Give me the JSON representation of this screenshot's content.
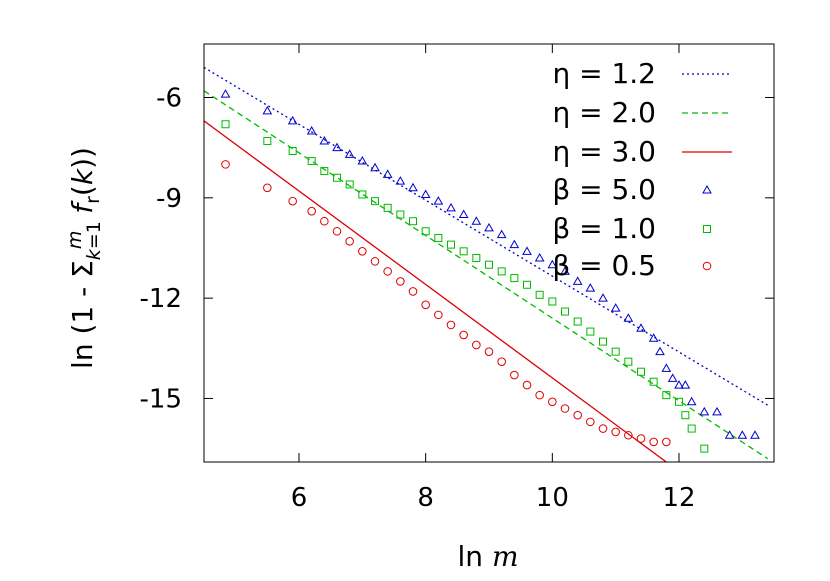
{
  "chart_data": {
    "type": "scatter",
    "xlabel": "ln m",
    "ylabel": "ln (1 - Σ_{k=1}^{m} f_r(k))",
    "xlim": [
      4.5,
      13.5
    ],
    "ylim": [
      -16.9,
      -4.4
    ],
    "xticks": [
      6,
      8,
      10,
      12
    ],
    "yticks": [
      -6,
      -9,
      -12,
      -15
    ],
    "tick_labels": {
      "x": [
        "6",
        "8",
        "10",
        "12"
      ],
      "y": [
        "-6",
        "-9",
        "-12",
        "-15"
      ]
    },
    "grid": false,
    "legend_position": "top-right",
    "series": [
      {
        "name": "η = 1.2",
        "kind": "line",
        "style": "dotted",
        "color": "#0000cc",
        "x": [
          4.5,
          13.4
        ],
        "y": [
          -5.1,
          -15.2
        ]
      },
      {
        "name": "η = 2.0",
        "kind": "line",
        "style": "dashed",
        "color": "#00bb00",
        "x": [
          4.5,
          13.4
        ],
        "y": [
          -5.8,
          -16.8
        ]
      },
      {
        "name": "η = 3.0",
        "kind": "line",
        "style": "solid",
        "color": "#dd0000",
        "x": [
          4.5,
          11.8
        ],
        "y": [
          -6.7,
          -16.9
        ]
      },
      {
        "name": "β = 5.0",
        "kind": "points",
        "marker": "triangle",
        "color": "#0000cc",
        "x": [
          4.84,
          5.5,
          5.9,
          6.2,
          6.4,
          6.6,
          6.8,
          7.0,
          7.2,
          7.4,
          7.6,
          7.8,
          8.0,
          8.2,
          8.4,
          8.6,
          8.8,
          9.0,
          9.2,
          9.4,
          9.6,
          9.8,
          10.0,
          10.2,
          10.4,
          10.6,
          10.8,
          11.0,
          11.2,
          11.4,
          11.6,
          11.7,
          11.8,
          11.9,
          12.0,
          12.1,
          12.2,
          12.4,
          12.6,
          12.8,
          13.0,
          13.2
        ],
        "y": [
          -5.9,
          -6.4,
          -6.7,
          -7.0,
          -7.3,
          -7.5,
          -7.7,
          -7.9,
          -8.1,
          -8.3,
          -8.5,
          -8.7,
          -8.9,
          -9.1,
          -9.3,
          -9.5,
          -9.7,
          -9.9,
          -10.1,
          -10.4,
          -10.6,
          -10.8,
          -11.0,
          -11.2,
          -11.5,
          -11.7,
          -12.0,
          -12.3,
          -12.6,
          -12.9,
          -13.2,
          -13.6,
          -14.1,
          -14.4,
          -14.6,
          -14.6,
          -15.1,
          -15.4,
          -15.4,
          -16.1,
          -16.1,
          -16.1
        ]
      },
      {
        "name": "β = 1.0",
        "kind": "points",
        "marker": "square",
        "color": "#00bb00",
        "x": [
          4.84,
          5.5,
          5.9,
          6.2,
          6.4,
          6.6,
          6.8,
          7.0,
          7.2,
          7.4,
          7.6,
          7.8,
          8.0,
          8.2,
          8.4,
          8.6,
          8.8,
          9.0,
          9.2,
          9.4,
          9.6,
          9.8,
          10.0,
          10.2,
          10.4,
          10.6,
          10.8,
          11.0,
          11.2,
          11.4,
          11.6,
          11.8,
          12.0,
          12.1,
          12.2,
          12.4
        ],
        "y": [
          -6.8,
          -7.3,
          -7.6,
          -7.9,
          -8.2,
          -8.4,
          -8.6,
          -8.9,
          -9.1,
          -9.3,
          -9.5,
          -9.7,
          -10.0,
          -10.2,
          -10.4,
          -10.6,
          -10.8,
          -11.0,
          -11.2,
          -11.4,
          -11.6,
          -11.9,
          -12.1,
          -12.4,
          -12.7,
          -13.0,
          -13.3,
          -13.6,
          -13.9,
          -14.2,
          -14.5,
          -14.9,
          -15.1,
          -15.5,
          -15.9,
          -16.5
        ]
      },
      {
        "name": "β = 0.5",
        "kind": "points",
        "marker": "circle",
        "color": "#dd0000",
        "x": [
          4.84,
          5.5,
          5.9,
          6.2,
          6.4,
          6.6,
          6.8,
          7.0,
          7.2,
          7.4,
          7.6,
          7.8,
          8.0,
          8.2,
          8.4,
          8.6,
          8.8,
          9.0,
          9.2,
          9.4,
          9.6,
          9.8,
          10.0,
          10.2,
          10.4,
          10.6,
          10.8,
          11.0,
          11.2,
          11.4,
          11.6,
          11.8
        ],
        "y": [
          -8.0,
          -8.7,
          -9.1,
          -9.4,
          -9.7,
          -10.0,
          -10.3,
          -10.6,
          -10.9,
          -11.2,
          -11.5,
          -11.8,
          -12.2,
          -12.5,
          -12.8,
          -13.1,
          -13.4,
          -13.6,
          -13.9,
          -14.3,
          -14.6,
          -14.9,
          -15.1,
          -15.3,
          -15.5,
          -15.7,
          -15.9,
          -16.0,
          -16.1,
          -16.2,
          -16.3,
          -16.3
        ]
      }
    ]
  }
}
